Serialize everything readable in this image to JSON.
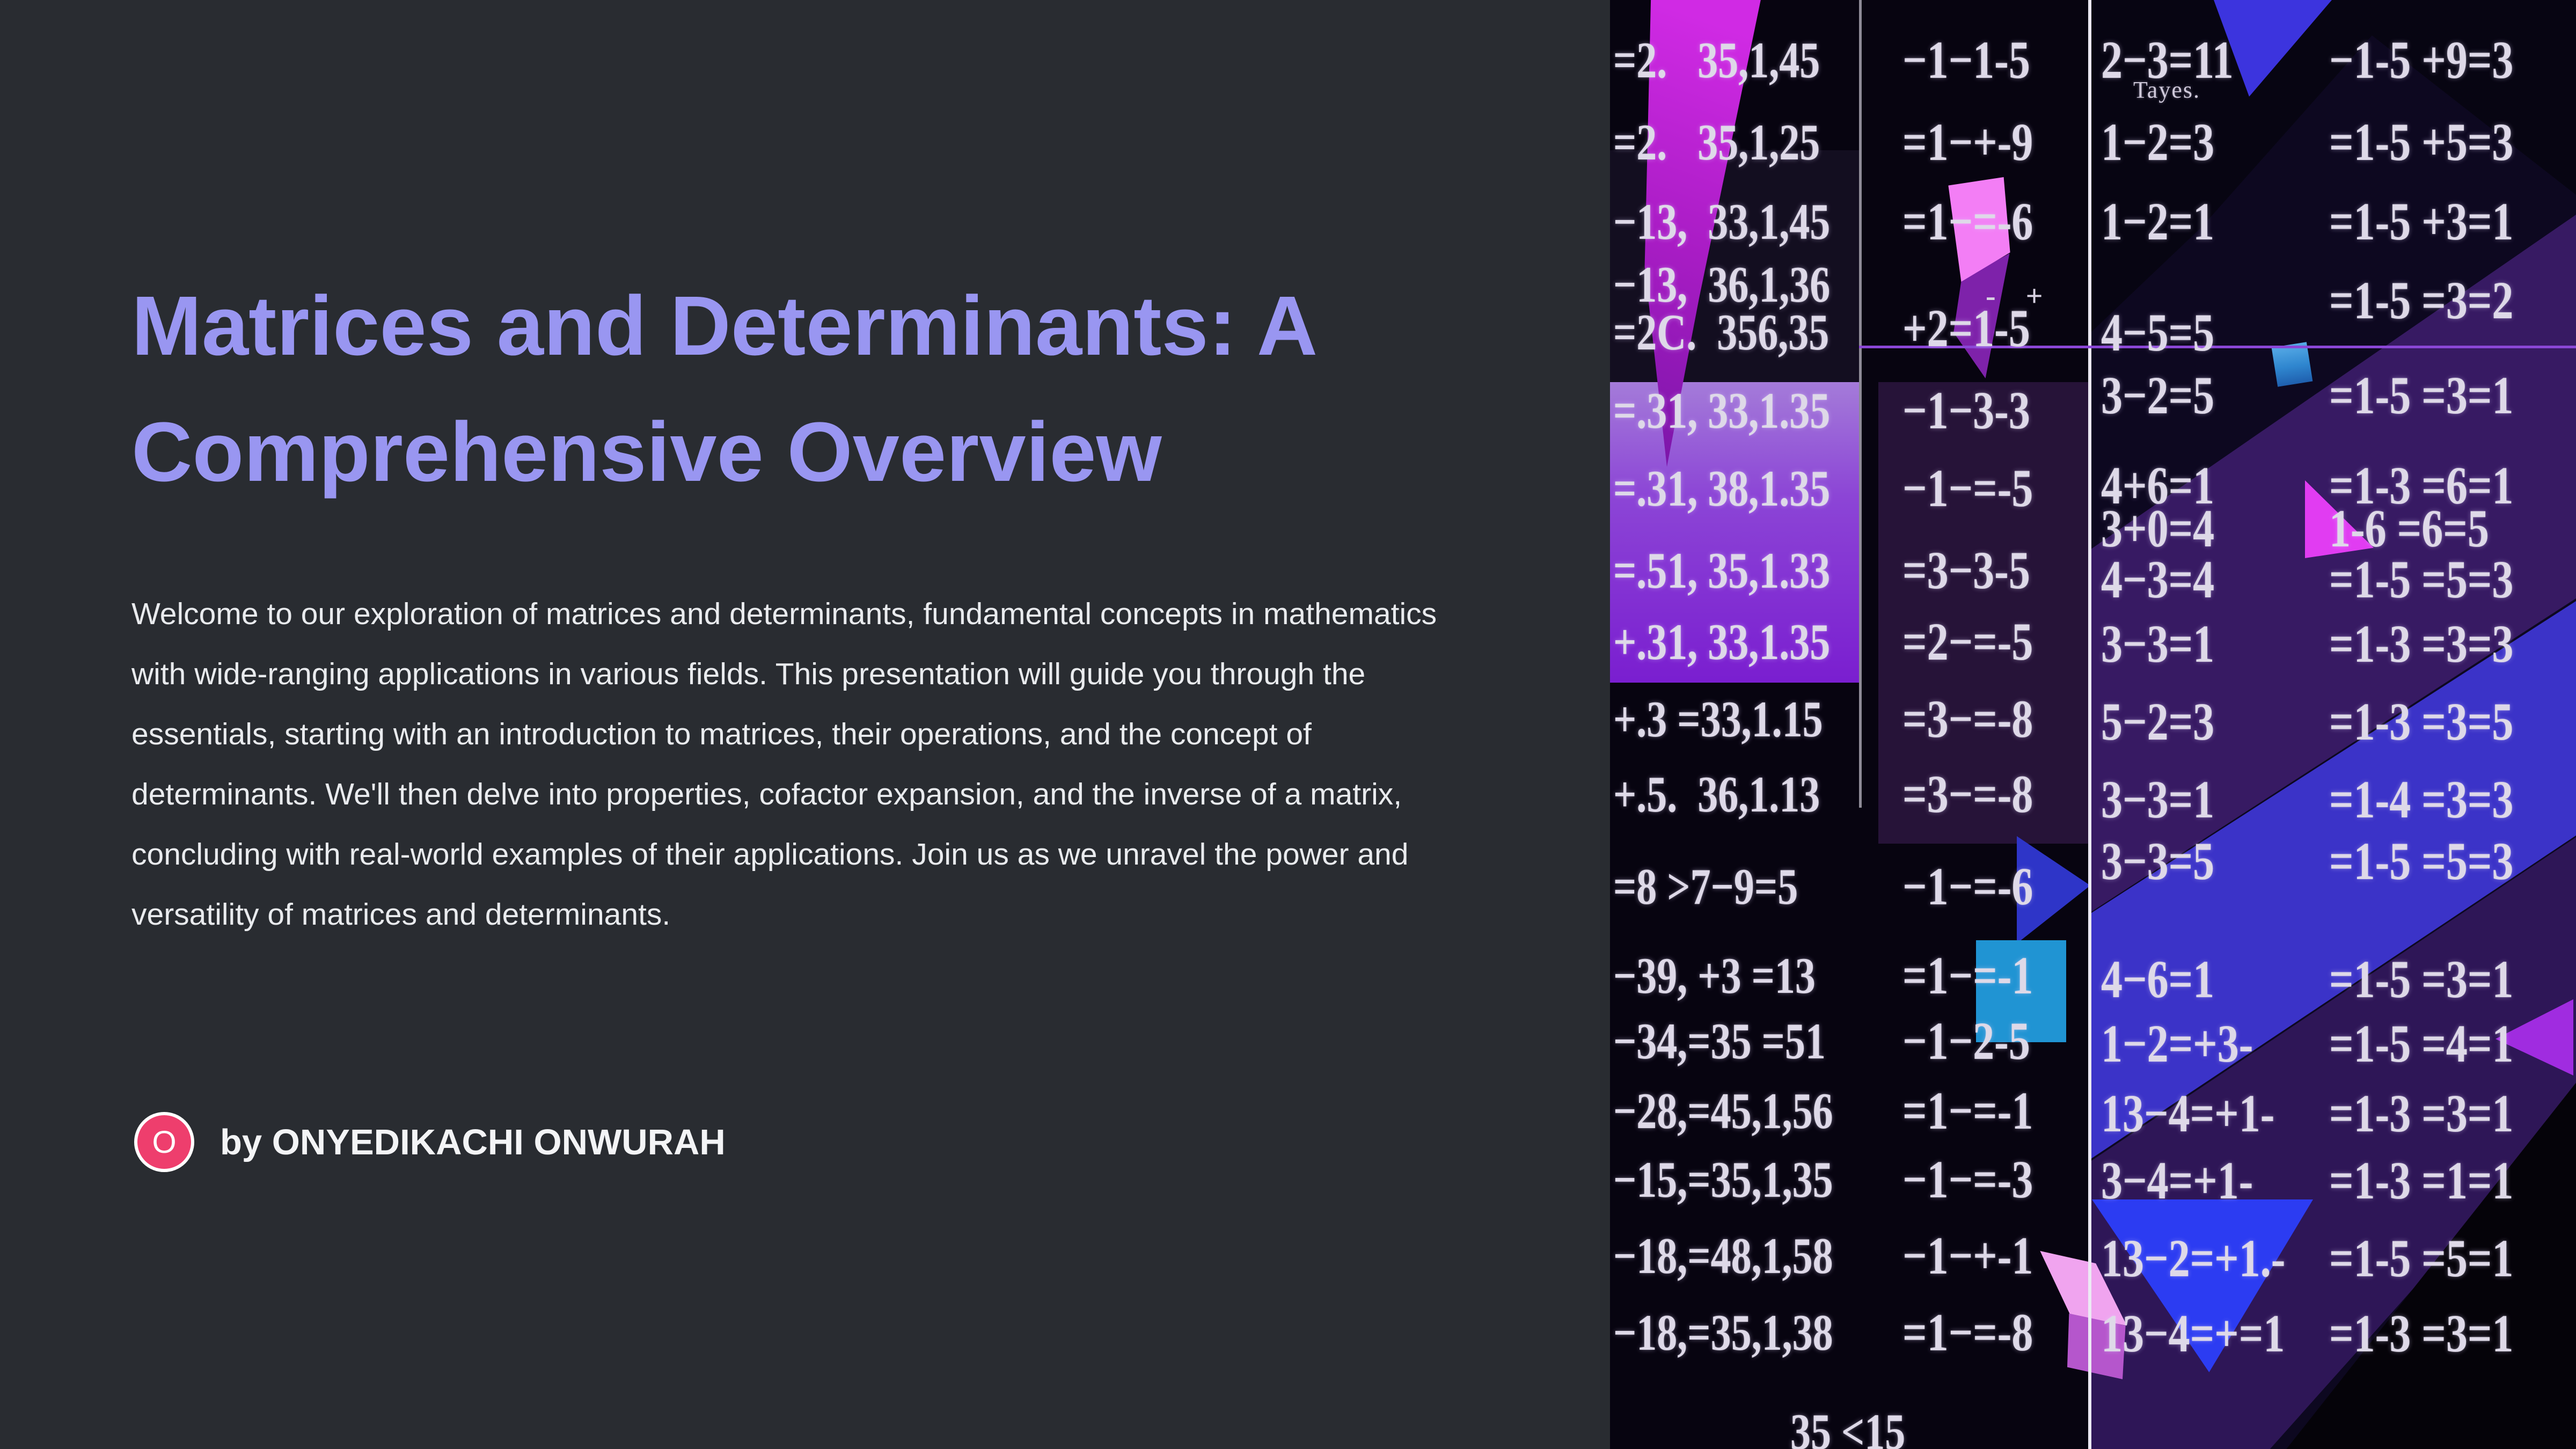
{
  "slide": {
    "title": "Matrices and Determinants: A Comprehensive Overview",
    "body": "Welcome to our exploration of matrices and determinants, fundamental concepts in mathematics with wide-ranging applications in various fields. This presentation will guide you through the essentials, starting with an introduction to matrices, their operations, and the concept of determinants. We'll then delve into properties, cofactor expansion, and the inverse of a matrix, concluding with real-world examples of their applications. Join us as we unravel the power and versatility of matrices and determinants.",
    "byline": {
      "avatar_initial": "O",
      "label": "by ONYEDIKACHI ONWURAH"
    }
  },
  "colors": {
    "panel_background": "#292c31",
    "title": "#9996f1",
    "body_text": "#e9ebee",
    "avatar": "#ee3e6d",
    "artwork_purple": "#7a1ed0",
    "artwork_indigo": "#3b33c8",
    "artwork_magenta": "#d02ae4",
    "artwork_azure": "#2094d3"
  },
  "artwork": {
    "annotation": "Tayes.",
    "superscript": "-    +",
    "columns": {
      "col1": [
        "=2.   35,1,45",
        "=2.   35,1,25",
        "−13,  33,1,45",
        "−13,  36,1,36",
        "=2C.  356,35",
        "=.31, 33,1.35",
        "=.31, 38,1.35",
        "=.51, 35,1.33",
        "+.31, 33,1.35",
        "+.3 =33,1.15",
        "+.5.  36,1.13",
        "=8 >7−9=5",
        "−39, +3 =13",
        "−34,=35 =51",
        "−28,=45,1,56",
        "−15,=35,1,35",
        "−18,=48,1,58",
        "−18,=35,1,38",
        "35 <15"
      ],
      "col2": [
        "−1−1-5",
        "=1−+-9",
        "=1−=-6",
        "+2=1-5",
        "−1−3-3",
        "−1−=-5",
        "=3−3-5",
        "=2−=-5",
        "=3−=-8",
        "=3−=-8",
        "−1−=-6",
        "=1−=-1",
        "−1−2-5",
        "=1−=-1",
        "−1−=-3",
        "−1−+-1",
        "=1−=-8"
      ],
      "col3": [
        "2−3=11",
        "1−2=3",
        "1−2=1",
        "4−5=5",
        "3−2=5",
        "4+6=1",
        "3+0=4",
        "4−3=4",
        "3−3=1",
        "5−2=3",
        "3−3=1",
        "3−3=5",
        "4−6=1",
        "1−2=+3-",
        "13−4=+1-",
        "3−4=+1-",
        "13−2=+1.-",
        "13−4=+=1"
      ],
      "col4": [
        "−1-5 +9=3",
        "=1-5 +5=3",
        "=1-5 +3=1",
        "=1-5 =3=2",
        "=1-5 =3=1",
        "=1-3 =6=1",
        "1-6 =6=5",
        "=1-5 =5=3",
        "=1-3 =3=3",
        "=1-3 =3=5",
        "=1-4 =3=3",
        "=1-5 =5=3",
        "=1-5 =3=1",
        "=1-5 =4=1",
        "=1-3 =3=1",
        "=1-3 =1=1",
        "=1-5 =5=1",
        "=1-3 =3=1"
      ]
    }
  }
}
